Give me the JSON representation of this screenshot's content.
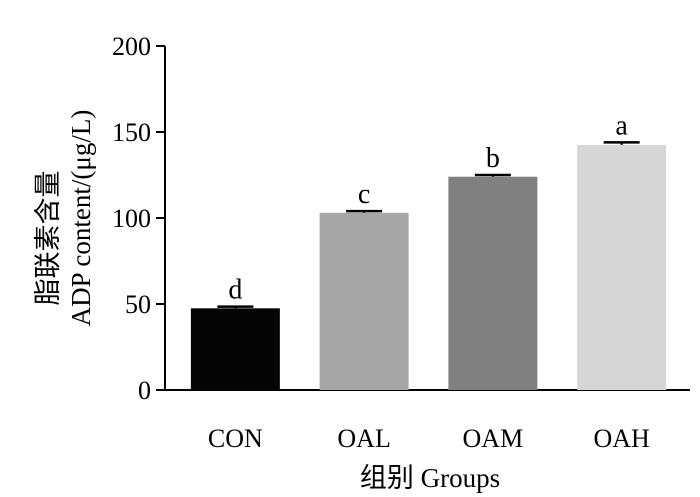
{
  "chart_data": {
    "type": "bar",
    "categories": [
      "CON",
      "OAL",
      "OAM",
      "OAH"
    ],
    "values": [
      47.5,
      103,
      124,
      142.5
    ],
    "errors": [
      1,
      1,
      1,
      1.5
    ],
    "significance_labels": [
      "d",
      "c",
      "b",
      "a"
    ],
    "colors": [
      "#050505",
      "#a6a6a6",
      "#808080",
      "#d6d6d6"
    ],
    "title": "",
    "xlabel": "组别 Groups",
    "ylabel_line1": "脂联素含量",
    "ylabel_line2": "ADP content/(μg/L)",
    "ylim": [
      0,
      200
    ],
    "yticks": [
      "0",
      "50",
      "100",
      "150",
      "200"
    ],
    "grid": false,
    "legend": "none"
  }
}
